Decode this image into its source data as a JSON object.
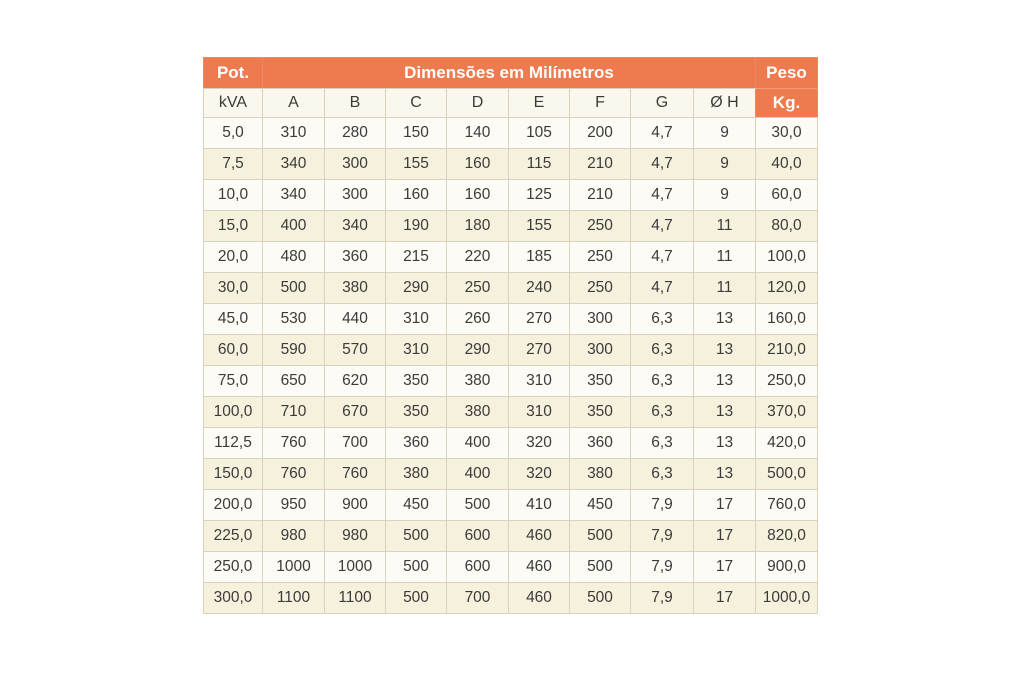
{
  "table": {
    "header": {
      "pot": "Pot.",
      "kva": "kVA",
      "dimensions_title": "Dimensões em Milímetros",
      "peso": "Peso",
      "kg": "Kg.",
      "dim_columns": [
        "A",
        "B",
        "C",
        "D",
        "E",
        "F",
        "G",
        "Ø H"
      ]
    },
    "rows": [
      [
        "5,0",
        "310",
        "280",
        "150",
        "140",
        "105",
        "200",
        "4,7",
        "9",
        "30,0"
      ],
      [
        "7,5",
        "340",
        "300",
        "155",
        "160",
        "115",
        "210",
        "4,7",
        "9",
        "40,0"
      ],
      [
        "10,0",
        "340",
        "300",
        "160",
        "160",
        "125",
        "210",
        "4,7",
        "9",
        "60,0"
      ],
      [
        "15,0",
        "400",
        "340",
        "190",
        "180",
        "155",
        "250",
        "4,7",
        "11",
        "80,0"
      ],
      [
        "20,0",
        "480",
        "360",
        "215",
        "220",
        "185",
        "250",
        "4,7",
        "11",
        "100,0"
      ],
      [
        "30,0",
        "500",
        "380",
        "290",
        "250",
        "240",
        "250",
        "4,7",
        "11",
        "120,0"
      ],
      [
        "45,0",
        "530",
        "440",
        "310",
        "260",
        "270",
        "300",
        "6,3",
        "13",
        "160,0"
      ],
      [
        "60,0",
        "590",
        "570",
        "310",
        "290",
        "270",
        "300",
        "6,3",
        "13",
        "210,0"
      ],
      [
        "75,0",
        "650",
        "620",
        "350",
        "380",
        "310",
        "350",
        "6,3",
        "13",
        "250,0"
      ],
      [
        "100,0",
        "710",
        "670",
        "350",
        "380",
        "310",
        "350",
        "6,3",
        "13",
        "370,0"
      ],
      [
        "112,5",
        "760",
        "700",
        "360",
        "400",
        "320",
        "360",
        "6,3",
        "13",
        "420,0"
      ],
      [
        "150,0",
        "760",
        "760",
        "380",
        "400",
        "320",
        "380",
        "6,3",
        "13",
        "500,0"
      ],
      [
        "200,0",
        "950",
        "900",
        "450",
        "500",
        "410",
        "450",
        "7,9",
        "17",
        "760,0"
      ],
      [
        "225,0",
        "980",
        "980",
        "500",
        "600",
        "460",
        "500",
        "7,9",
        "17",
        "820,0"
      ],
      [
        "250,0",
        "1000",
        "1000",
        "500",
        "600",
        "460",
        "500",
        "7,9",
        "17",
        "900,0"
      ],
      [
        "300,0",
        "1100",
        "1100",
        "500",
        "700",
        "460",
        "500",
        "7,9",
        "17",
        "1000,0"
      ]
    ]
  },
  "colors": {
    "header_orange": "#ED7B4F",
    "row_white": "#FCFBF5",
    "row_cream": "#F5F1DC",
    "border": "#D8D1BD",
    "text": "#3B3B3B"
  }
}
